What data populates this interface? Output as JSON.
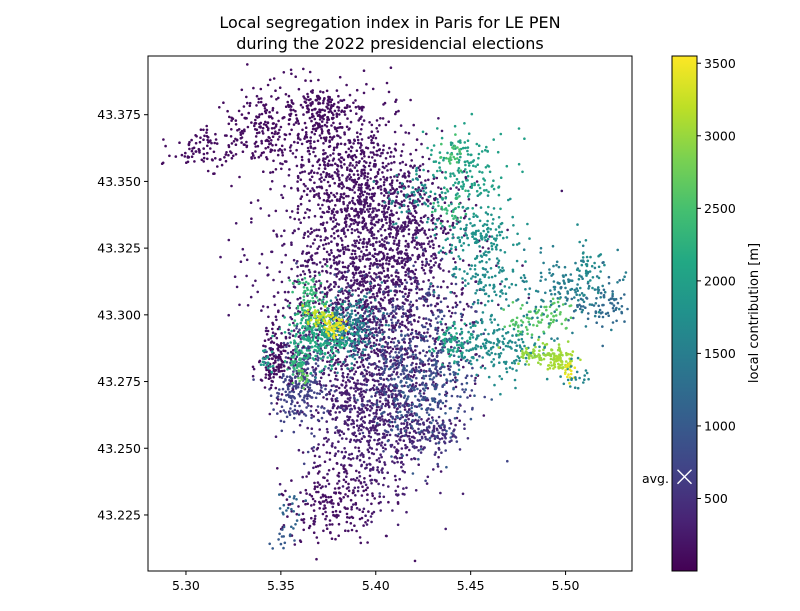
{
  "chart_data": {
    "type": "scatter",
    "title_lines": [
      "Local segregation index in Paris for LE PEN",
      "during the 2022 presidencial elections"
    ],
    "xlabel": "",
    "ylabel": "",
    "xlim": [
      5.28,
      5.535
    ],
    "ylim": [
      43.204,
      43.397
    ],
    "x_ticks": [
      5.3,
      5.35,
      5.4,
      5.45,
      5.5
    ],
    "x_tick_labels": [
      "5.30",
      "5.35",
      "5.40",
      "5.45",
      "5.50"
    ],
    "y_ticks": [
      43.225,
      43.25,
      43.275,
      43.3,
      43.325,
      43.35,
      43.375
    ],
    "y_tick_labels": [
      "43.225",
      "43.250",
      "43.275",
      "43.300",
      "43.325",
      "43.350",
      "43.375"
    ],
    "colorbar": {
      "label": "local contribution [m]",
      "colormap": "viridis",
      "range": [
        0,
        3550
      ],
      "ticks": [
        500,
        1000,
        1500,
        2000,
        2500,
        3000,
        3500
      ],
      "tick_labels": [
        "500",
        "1000",
        "1500",
        "2000",
        "2500",
        "3000",
        "3500"
      ],
      "average_value": 650,
      "average_label": "avg.",
      "average_marker": "x"
    },
    "clusters": [
      {
        "x": 5.395,
        "y": 43.305,
        "sx": 0.025,
        "sy": 0.022,
        "n": 1600,
        "value": 220
      },
      {
        "x": 5.4,
        "y": 43.262,
        "sx": 0.016,
        "sy": 0.016,
        "n": 750,
        "value": 300
      },
      {
        "x": 5.383,
        "y": 43.355,
        "sx": 0.017,
        "sy": 0.017,
        "n": 650,
        "value": 160
      },
      {
        "x": 5.412,
        "y": 43.335,
        "sx": 0.018,
        "sy": 0.013,
        "n": 450,
        "value": 200
      },
      {
        "x": 5.34,
        "y": 43.37,
        "sx": 0.012,
        "sy": 0.008,
        "n": 220,
        "value": 120
      },
      {
        "x": 5.372,
        "y": 43.375,
        "sx": 0.008,
        "sy": 0.005,
        "n": 140,
        "value": 120
      },
      {
        "x": 5.308,
        "y": 43.362,
        "sx": 0.008,
        "sy": 0.004,
        "n": 80,
        "value": 120
      },
      {
        "x": 5.378,
        "y": 43.23,
        "sx": 0.013,
        "sy": 0.008,
        "n": 220,
        "value": 160
      },
      {
        "x": 5.36,
        "y": 43.276,
        "sx": 0.008,
        "sy": 0.01,
        "n": 260,
        "value": 700
      },
      {
        "x": 5.42,
        "y": 43.285,
        "sx": 0.016,
        "sy": 0.016,
        "n": 420,
        "value": 720
      },
      {
        "x": 5.425,
        "y": 43.27,
        "sx": 0.012,
        "sy": 0.01,
        "n": 180,
        "value": 1000
      },
      {
        "x": 5.385,
        "y": 43.295,
        "sx": 0.008,
        "sy": 0.006,
        "n": 240,
        "value": 1500
      },
      {
        "x": 5.37,
        "y": 43.291,
        "sx": 0.008,
        "sy": 0.006,
        "n": 220,
        "value": 2150
      },
      {
        "x": 5.365,
        "y": 43.305,
        "sx": 0.005,
        "sy": 0.006,
        "n": 90,
        "value": 2350
      },
      {
        "x": 5.378,
        "y": 43.295,
        "sx": 0.003,
        "sy": 0.002,
        "n": 60,
        "value": 3450
      },
      {
        "x": 5.37,
        "y": 43.299,
        "sx": 0.004,
        "sy": 0.002,
        "n": 40,
        "value": 3250
      },
      {
        "x": 5.358,
        "y": 43.282,
        "sx": 0.003,
        "sy": 0.002,
        "n": 40,
        "value": 2300
      },
      {
        "x": 5.362,
        "y": 43.276,
        "sx": 0.003,
        "sy": 0.002,
        "n": 20,
        "value": 2700
      },
      {
        "x": 5.448,
        "y": 43.354,
        "sx": 0.01,
        "sy": 0.008,
        "n": 160,
        "value": 2000
      },
      {
        "x": 5.455,
        "y": 43.33,
        "sx": 0.01,
        "sy": 0.006,
        "n": 150,
        "value": 1800
      },
      {
        "x": 5.458,
        "y": 43.313,
        "sx": 0.01,
        "sy": 0.006,
        "n": 100,
        "value": 1700
      },
      {
        "x": 5.44,
        "y": 43.36,
        "sx": 0.003,
        "sy": 0.003,
        "n": 25,
        "value": 2500
      },
      {
        "x": 5.438,
        "y": 43.34,
        "sx": 0.004,
        "sy": 0.003,
        "n": 30,
        "value": 2350
      },
      {
        "x": 5.42,
        "y": 43.345,
        "sx": 0.008,
        "sy": 0.004,
        "n": 60,
        "value": 1700
      },
      {
        "x": 5.465,
        "y": 43.288,
        "sx": 0.014,
        "sy": 0.006,
        "n": 200,
        "value": 1700
      },
      {
        "x": 5.44,
        "y": 43.29,
        "sx": 0.006,
        "sy": 0.004,
        "n": 60,
        "value": 2100
      },
      {
        "x": 5.488,
        "y": 43.285,
        "sx": 0.008,
        "sy": 0.002,
        "n": 90,
        "value": 3000
      },
      {
        "x": 5.498,
        "y": 43.282,
        "sx": 0.004,
        "sy": 0.002,
        "n": 50,
        "value": 3100
      },
      {
        "x": 5.502,
        "y": 43.279,
        "sx": 0.002,
        "sy": 0.002,
        "n": 20,
        "value": 3450
      },
      {
        "x": 5.478,
        "y": 43.298,
        "sx": 0.006,
        "sy": 0.003,
        "n": 40,
        "value": 2600
      },
      {
        "x": 5.492,
        "y": 43.3,
        "sx": 0.006,
        "sy": 0.003,
        "n": 40,
        "value": 2650
      },
      {
        "x": 5.505,
        "y": 43.276,
        "sx": 0.003,
        "sy": 0.003,
        "n": 20,
        "value": 1600
      },
      {
        "x": 5.5,
        "y": 43.31,
        "sx": 0.014,
        "sy": 0.007,
        "n": 140,
        "value": 1500
      },
      {
        "x": 5.518,
        "y": 43.303,
        "sx": 0.008,
        "sy": 0.005,
        "n": 70,
        "value": 1200
      },
      {
        "x": 5.512,
        "y": 43.318,
        "sx": 0.004,
        "sy": 0.006,
        "n": 40,
        "value": 1700
      },
      {
        "x": 5.355,
        "y": 43.227,
        "sx": 0.004,
        "sy": 0.003,
        "n": 20,
        "value": 1150
      },
      {
        "x": 5.352,
        "y": 43.216,
        "sx": 0.003,
        "sy": 0.002,
        "n": 15,
        "value": 1000
      },
      {
        "x": 5.348,
        "y": 43.283,
        "sx": 0.005,
        "sy": 0.006,
        "n": 120,
        "value": 120
      },
      {
        "x": 5.343,
        "y": 43.283,
        "sx": 0.002,
        "sy": 0.002,
        "n": 20,
        "value": 1900
      },
      {
        "x": 5.43,
        "y": 43.255,
        "sx": 0.01,
        "sy": 0.004,
        "n": 80,
        "value": 500
      }
    ]
  }
}
